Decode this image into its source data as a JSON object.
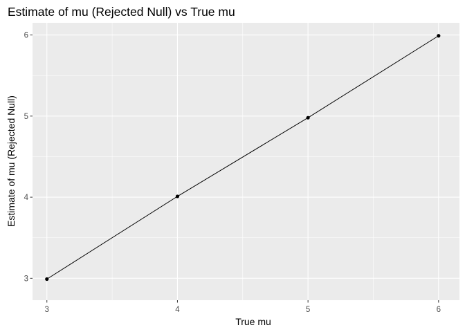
{
  "chart_data": {
    "type": "line",
    "title": "Estimate of mu (Rejected Null) vs True mu",
    "xlabel": "True mu",
    "ylabel": "Estimate of mu (Rejected Null)",
    "x": [
      3,
      4,
      5,
      6
    ],
    "y": [
      2.99,
      4.01,
      4.98,
      5.99
    ],
    "xlim": [
      2.89,
      6.16
    ],
    "ylim": [
      2.73,
      6.15
    ],
    "xticks": [
      3,
      4,
      5,
      6
    ],
    "yticks": [
      3,
      4,
      5,
      6
    ],
    "xtick_labels": [
      "3",
      "4",
      "5",
      "6"
    ],
    "ytick_labels": [
      "3",
      "4",
      "5",
      "6"
    ],
    "grid": true,
    "panel_background": "#ebebeb",
    "grid_color": "#ffffff",
    "line_color": "#000000",
    "point_color": "#000000"
  }
}
